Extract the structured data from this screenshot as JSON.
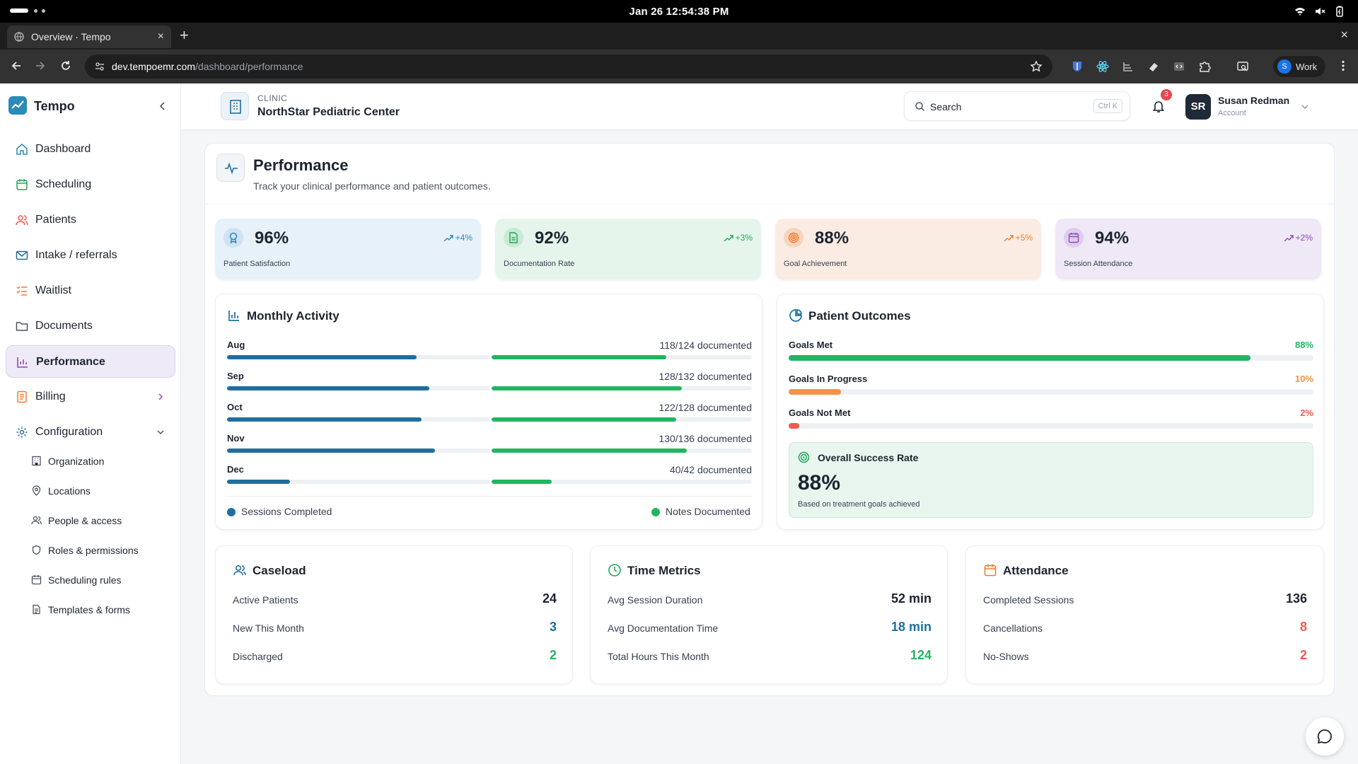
{
  "os": {
    "datetime": "Jan 26  12:54:38 PM"
  },
  "browser": {
    "tab_title": "Overview · Tempo",
    "new_tab": "+",
    "close": "×",
    "url_host": "dev.tempoemr.com",
    "url_path": "/dashboard/performance",
    "profile_initial": "S",
    "profile_label": "Work"
  },
  "sidebar": {
    "brand": "Tempo",
    "items": [
      {
        "label": "Dashboard",
        "icon": "home-icon"
      },
      {
        "label": "Scheduling",
        "icon": "calendar-icon"
      },
      {
        "label": "Patients",
        "icon": "users-icon"
      },
      {
        "label": "Intake / referrals",
        "icon": "mail-icon"
      },
      {
        "label": "Waitlist",
        "icon": "list-icon"
      },
      {
        "label": "Documents",
        "icon": "folder-icon"
      },
      {
        "label": "Performance",
        "icon": "bar-chart-icon",
        "active": true
      },
      {
        "label": "Billing",
        "icon": "receipt-icon"
      },
      {
        "label": "Configuration",
        "icon": "gear-icon"
      }
    ],
    "sub_items": [
      {
        "label": "Organization",
        "icon": "building-icon"
      },
      {
        "label": "Locations",
        "icon": "map-pin-icon"
      },
      {
        "label": "People & access",
        "icon": "users-icon"
      },
      {
        "label": "Roles & permissions",
        "icon": "shield-icon"
      },
      {
        "label": "Scheduling rules",
        "icon": "calendar-icon"
      },
      {
        "label": "Templates & forms",
        "icon": "file-icon"
      }
    ]
  },
  "header": {
    "clinic_label": "CLINIC",
    "clinic_name": "NorthStar Pediatric Center",
    "search_placeholder": "Search",
    "search_shortcut": "Ctrl K",
    "notification_count": "3",
    "user_initials": "SR",
    "user_name": "Susan Redman",
    "user_role": "Account"
  },
  "page": {
    "title": "Performance",
    "subtitle": "Track your clinical performance and patient outcomes."
  },
  "stats": [
    {
      "value": "96%",
      "trend": "+4%",
      "label": "Patient Satisfaction",
      "bg": "#e7f1f9",
      "accent": "#2a8ab8",
      "icon_bg": "#cfe3f2"
    },
    {
      "value": "92%",
      "trend": "+3%",
      "label": "Documentation Rate",
      "bg": "#e6f5ec",
      "accent": "#22a55a",
      "icon_bg": "#c9ead5"
    },
    {
      "value": "88%",
      "trend": "+5%",
      "label": "Goal Achievement",
      "bg": "#fbece3",
      "accent": "#f07c33",
      "icon_bg": "#f7d4bd"
    },
    {
      "value": "94%",
      "trend": "+2%",
      "label": "Session Attendance",
      "bg": "#efe8f6",
      "accent": "#8e4bb8",
      "icon_bg": "#dfcdef"
    }
  ],
  "monthly_activity": {
    "title": "Monthly Activity",
    "months": [
      {
        "month": "Aug",
        "documented": "118/124 documented",
        "sessions_pct": 72,
        "notes_pct": 67
      },
      {
        "month": "Sep",
        "documented": "128/132 documented",
        "sessions_pct": 77,
        "notes_pct": 73
      },
      {
        "month": "Oct",
        "documented": "122/128 documented",
        "sessions_pct": 74,
        "notes_pct": 71
      },
      {
        "month": "Nov",
        "documented": "130/136 documented",
        "sessions_pct": 79,
        "notes_pct": 75
      },
      {
        "month": "Dec",
        "documented": "40/42 documented",
        "sessions_pct": 24,
        "notes_pct": 23
      }
    ],
    "legend_sessions": "Sessions Completed",
    "legend_notes": "Notes Documented",
    "sessions_color": "#1f6f9e",
    "notes_color": "#22b561"
  },
  "patient_outcomes": {
    "title": "Patient Outcomes",
    "rows": [
      {
        "label": "Goals Met",
        "pct_label": "88%",
        "pct": 88,
        "color": "#22b561"
      },
      {
        "label": "Goals In Progress",
        "pct_label": "10%",
        "pct": 10,
        "color": "#f5914a"
      },
      {
        "label": "Goals Not Met",
        "pct_label": "2%",
        "pct": 2,
        "color": "#ee5a4f"
      }
    ],
    "success_title": "Overall Success Rate",
    "success_value": "88%",
    "success_note": "Based on treatment goals achieved"
  },
  "metric_cards": [
    {
      "title": "Caseload",
      "icon": "users-icon",
      "icon_color": "#1f6f9e",
      "rows": [
        {
          "label": "Active Patients",
          "value": "24",
          "color": "#1c2430"
        },
        {
          "label": "New This Month",
          "value": "3",
          "color": "#1f6f9e"
        },
        {
          "label": "Discharged",
          "value": "2",
          "color": "#22b561"
        }
      ]
    },
    {
      "title": "Time Metrics",
      "icon": "clock-icon",
      "icon_color": "#22a55a",
      "rows": [
        {
          "label": "Avg Session Duration",
          "value": "52 min",
          "color": "#1c2430"
        },
        {
          "label": "Avg Documentation Time",
          "value": "18 min",
          "color": "#1f6f9e"
        },
        {
          "label": "Total Hours This Month",
          "value": "124",
          "color": "#22b561"
        }
      ]
    },
    {
      "title": "Attendance",
      "icon": "calendar-icon",
      "icon_color": "#f07c33",
      "rows": [
        {
          "label": "Completed Sessions",
          "value": "136",
          "color": "#1c2430"
        },
        {
          "label": "Cancellations",
          "value": "8",
          "color": "#ee5a4f"
        },
        {
          "label": "No-Shows",
          "value": "2",
          "color": "#ee5a4f"
        }
      ]
    }
  ]
}
